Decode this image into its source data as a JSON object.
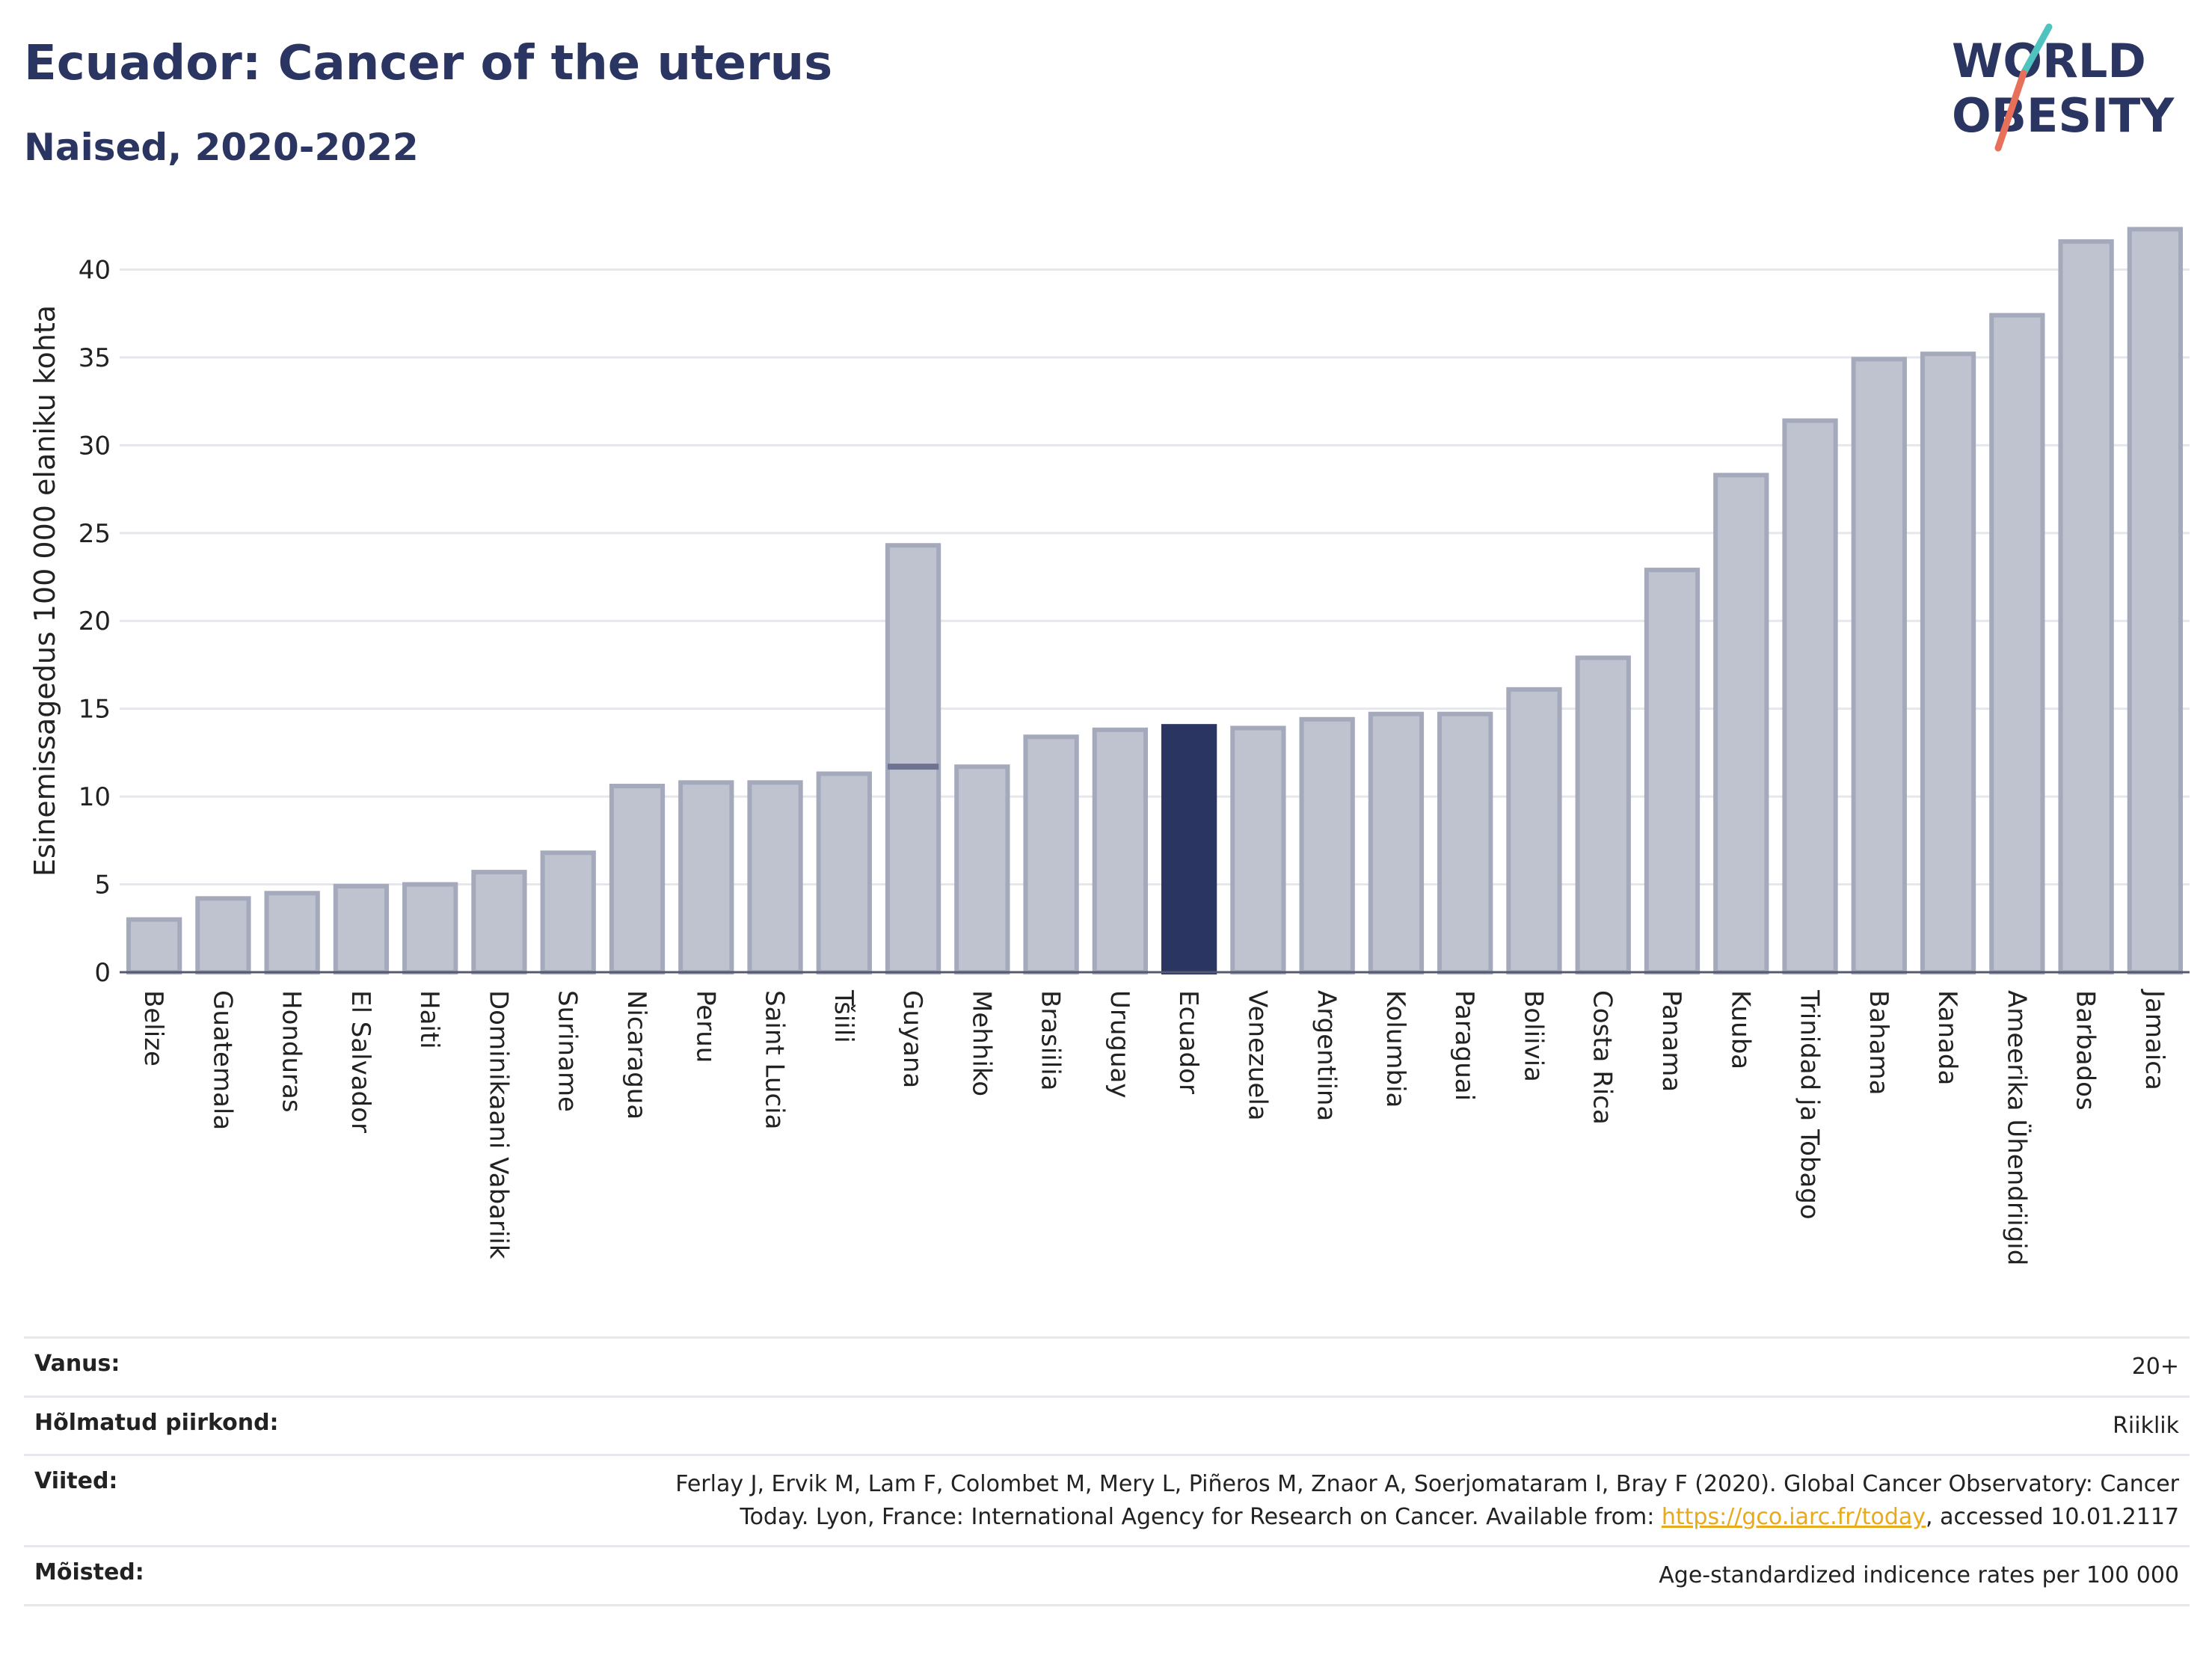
{
  "header": {
    "title": "Ecuador: Cancer of the uterus",
    "subtitle": "Naised, 2020-2022"
  },
  "logo": {
    "line1": "WORLD",
    "line2": "OBESITY",
    "accent_colors": [
      "#4ec3c0",
      "#e8705a"
    ]
  },
  "chart_data": {
    "type": "bar",
    "ylabel": "Esinemissagedus 100 000 elaniku kohta",
    "ylim": [
      0,
      43
    ],
    "yticks": [
      0,
      5,
      10,
      15,
      20,
      25,
      30,
      35,
      40
    ],
    "grid": true,
    "categories": [
      "Belize",
      "Guatemala",
      "Honduras",
      "El Salvador",
      "Haiti",
      "Dominikaani Vabariik",
      "Suriname",
      "Nicaragua",
      "Peruu",
      "Saint Lucia",
      "Tšiili",
      "Guyana",
      "Mehhiko",
      "Brasiilia",
      "Uruguay",
      "Ecuador",
      "Venezuela",
      "Argentiina",
      "Kolumbia",
      "Paraguai",
      "Boliivia",
      "Costa Rica",
      "Panama",
      "Kuuba",
      "Trinidad ja Tobago",
      "Bahama",
      "Kanada",
      "Ameerika Ühendriigid",
      "Barbados",
      "Jamaica"
    ],
    "values": [
      3.0,
      4.2,
      4.5,
      4.9,
      5.0,
      5.7,
      6.8,
      10.6,
      10.8,
      10.8,
      11.3,
      24.3,
      11.7,
      13.4,
      13.8,
      14.0,
      13.9,
      14.4,
      14.7,
      14.7,
      16.1,
      17.9,
      22.9,
      28.3,
      31.4,
      34.9,
      35.2,
      37.4,
      41.6,
      42.3
    ],
    "secondary_marks": [
      {
        "category": "Guyana",
        "value": 11.7
      }
    ],
    "highlight": "Ecuador",
    "colors": {
      "bar": "#bfc3d0",
      "bar_border": "#a4a9bb",
      "highlight": "#2b3561",
      "grid": "#e5e7ec",
      "axis": "#555a6e"
    }
  },
  "meta": {
    "rows": [
      {
        "key": "Vanus:",
        "value": "20+"
      },
      {
        "key": "Hõlmatud piirkond:",
        "value": "Riiklik"
      },
      {
        "key": "Viited:",
        "value_before": "Ferlay J, Ervik M, Lam F, Colombet M, Mery L, Piñeros M, Znaor A, Soerjomataram I, Bray F (2020). Global Cancer Observatory: Cancer Today. Lyon, France: International Agency for Research on Cancer. Available from: ",
        "link": "https://gco.iarc.fr/today",
        "value_after": ", accessed 10.01.2117"
      },
      {
        "key": "Mõisted:",
        "value": "Age-standardized indicence rates per 100 000"
      }
    ]
  }
}
